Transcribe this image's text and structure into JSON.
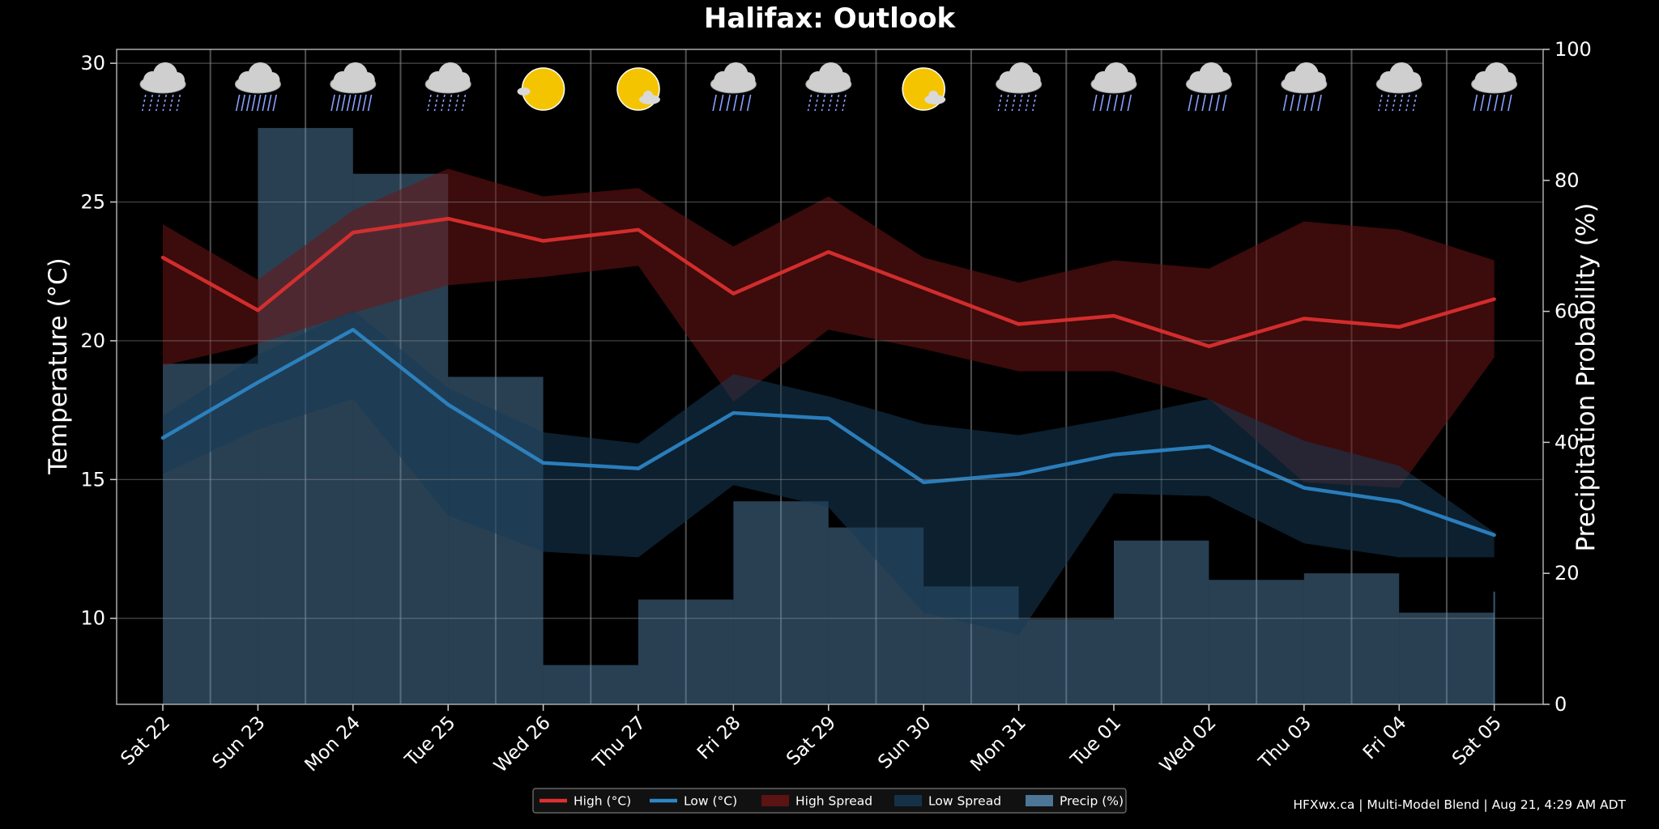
{
  "chart_data": {
    "type": "line",
    "title": "Halifax: Outlook",
    "ylabel_left": "Temperature (°C)",
    "ylabel_right": "Precipitation Probability (%)",
    "ylim_left": [
      6.9,
      30.5
    ],
    "ylim_right": [
      0,
      100
    ],
    "yticks_left": [
      10,
      15,
      20,
      25,
      30
    ],
    "yticks_right": [
      0,
      20,
      40,
      60,
      80,
      100
    ],
    "categories": [
      "Sat 22",
      "Sun 23",
      "Mon 24",
      "Tue 25",
      "Wed 26",
      "Thu 27",
      "Fri 28",
      "Sat 29",
      "Sun 30",
      "Mon 31",
      "Tue 01",
      "Wed 02",
      "Thu 03",
      "Fri 04",
      "Sat 05"
    ],
    "weather_icons": [
      "rain-icon",
      "heavy-rain-icon",
      "heavy-rain-icon",
      "rain-icon",
      "sunny-icon",
      "partly-sunny-icon",
      "showers-icon",
      "rain-icon",
      "partly-sunny-icon",
      "rain-icon",
      "showers-icon",
      "showers-icon",
      "showers-icon",
      "rain-icon",
      "showers-icon"
    ],
    "series": [
      {
        "name": "High (°C)",
        "kind": "line",
        "color": "#e03030",
        "values": [
          23.0,
          21.1,
          23.9,
          24.4,
          23.6,
          24.0,
          21.7,
          23.2,
          21.9,
          20.6,
          20.9,
          19.8,
          20.8,
          20.5,
          21.5
        ]
      },
      {
        "name": "Low (°C)",
        "kind": "line",
        "color": "#2e86c8",
        "values": [
          16.5,
          18.5,
          20.4,
          17.7,
          15.6,
          15.4,
          17.4,
          17.2,
          14.9,
          15.2,
          15.9,
          16.2,
          14.7,
          14.2,
          13.0
        ]
      },
      {
        "name": "High Spread",
        "kind": "band",
        "color": "#6e1414",
        "upper": [
          24.2,
          22.2,
          24.7,
          26.2,
          25.2,
          25.5,
          23.4,
          25.2,
          23.0,
          22.1,
          22.9,
          22.6,
          24.3,
          24.0,
          22.9
        ],
        "lower": [
          19.1,
          19.9,
          21.0,
          22.0,
          22.3,
          22.7,
          17.8,
          20.4,
          19.7,
          18.9,
          18.9,
          17.9,
          14.9,
          14.7,
          19.4
        ]
      },
      {
        "name": "Low Spread",
        "kind": "band",
        "color": "#163a55",
        "upper": [
          17.3,
          19.5,
          21.1,
          18.3,
          16.7,
          16.3,
          18.8,
          18.0,
          17.0,
          16.6,
          17.2,
          17.9,
          16.4,
          15.5,
          13.1
        ],
        "lower": [
          15.2,
          16.8,
          17.9,
          13.7,
          12.4,
          12.2,
          14.8,
          14.0,
          10.2,
          9.4,
          14.5,
          14.4,
          12.7,
          12.2,
          12.2
        ]
      },
      {
        "name": "Precip (%)",
        "kind": "step",
        "color": "#5b8fb8",
        "values": [
          52,
          88,
          81,
          50,
          6,
          16,
          31,
          27,
          18,
          13,
          25,
          19,
          20,
          14,
          14
        ]
      }
    ],
    "legend_location": "bottom-center",
    "grid": true
  },
  "footer": {
    "credit": "HFXwx.ca | Multi-Model Blend | Aug 21, 4:29 AM ADT"
  }
}
